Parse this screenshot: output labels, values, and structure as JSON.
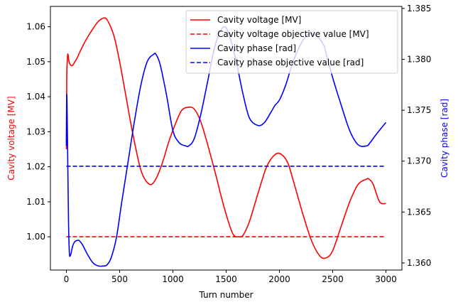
{
  "chart_data": {
    "type": "line",
    "xlabel": "Turn number",
    "ylabel_left": "Cavity voltage [MV]",
    "ylabel_right": "Cavity phase [rad]",
    "xlim": [
      -150,
      3150
    ],
    "ylim_left": [
      0.9905,
      1.0658
    ],
    "ylim_right": [
      1.3593,
      1.3852
    ],
    "xticks": [
      0,
      500,
      1000,
      1500,
      2000,
      2500,
      3000
    ],
    "yticks_left": [
      1.0,
      1.01,
      1.02,
      1.03,
      1.04,
      1.05,
      1.06
    ],
    "yticks_right": [
      1.36,
      1.365,
      1.37,
      1.375,
      1.38,
      1.385
    ],
    "grid": false,
    "legend_position": "top-right",
    "colors": {
      "voltage": "#ff0000",
      "phase": "#0000ff"
    },
    "series": [
      {
        "name": "Cavity voltage [MV]",
        "axis": "left",
        "style": "solid",
        "color": "#ff0000",
        "x": [
          0,
          3,
          8,
          12,
          16,
          25,
          40,
          60,
          80,
          100,
          130,
          180,
          240,
          300,
          360,
          400,
          450,
          500,
          560,
          620,
          700,
          780,
          840,
          900,
          960,
          1020,
          1080,
          1140,
          1200,
          1260,
          1320,
          1400,
          1480,
          1560,
          1620,
          1660,
          1720,
          1800,
          1880,
          1960,
          2020,
          2080,
          2140,
          2220,
          2300,
          2380,
          2440,
          2500,
          2580,
          2660,
          2740,
          2820,
          2840,
          2880,
          2940,
          3000
        ],
        "y": [
          1.025,
          1.045,
          1.05,
          1.052,
          1.052,
          1.05,
          1.049,
          1.049,
          1.05,
          1.051,
          1.053,
          1.056,
          1.059,
          1.0615,
          1.0625,
          1.061,
          1.057,
          1.05,
          1.04,
          1.03,
          1.019,
          1.015,
          1.0165,
          1.021,
          1.027,
          1.032,
          1.036,
          1.037,
          1.0365,
          1.033,
          1.027,
          1.018,
          1.0085,
          1.001,
          1.0,
          1.0005,
          1.0045,
          1.0125,
          1.02,
          1.0235,
          1.0235,
          1.021,
          1.015,
          1.0065,
          0.999,
          0.9945,
          0.994,
          0.996,
          1.003,
          1.01,
          1.015,
          1.0165,
          1.0165,
          1.015,
          1.01,
          1.0095
        ]
      },
      {
        "name": "Cavity voltage objective value [MV]",
        "axis": "left",
        "style": "dashed",
        "color": "#ff0000",
        "x": [
          0,
          3000
        ],
        "y": [
          1.0,
          1.0
        ]
      },
      {
        "name": "Cavity phase [rad]",
        "axis": "right",
        "style": "solid",
        "color": "#0000ff",
        "x": [
          0,
          3,
          8,
          14,
          20,
          28,
          36,
          45,
          60,
          80,
          100,
          120,
          150,
          200,
          250,
          300,
          350,
          380,
          420,
          470,
          520,
          580,
          640,
          700,
          760,
          820,
          840,
          880,
          940,
          1000,
          1060,
          1120,
          1150,
          1200,
          1260,
          1320,
          1400,
          1480,
          1540,
          1600,
          1660,
          1720,
          1800,
          1860,
          1920,
          1960,
          2000,
          2060,
          2120,
          2200,
          2280,
          2360,
          2420,
          2440,
          2500,
          2580,
          2660,
          2740,
          2820,
          2850,
          2900,
          2960,
          3000
        ],
        "y": [
          1.3715,
          1.3765,
          1.374,
          1.369,
          1.364,
          1.361,
          1.3607,
          1.361,
          1.3617,
          1.3621,
          1.3622,
          1.3622,
          1.3618,
          1.3608,
          1.36,
          1.3597,
          1.3597,
          1.3598,
          1.3605,
          1.3625,
          1.366,
          1.37,
          1.374,
          1.3775,
          1.3798,
          1.3805,
          1.3805,
          1.3795,
          1.3765,
          1.373,
          1.3718,
          1.3715,
          1.3715,
          1.3722,
          1.3745,
          1.3775,
          1.3815,
          1.3832,
          1.382,
          1.3795,
          1.3765,
          1.3742,
          1.3735,
          1.3738,
          1.3748,
          1.3755,
          1.376,
          1.3775,
          1.3795,
          1.3815,
          1.3825,
          1.3822,
          1.3813,
          1.3805,
          1.3782,
          1.3755,
          1.373,
          1.3716,
          1.3715,
          1.3718,
          1.3725,
          1.3733,
          1.3738
        ]
      },
      {
        "name": "Cavity phase objective value [rad]",
        "axis": "right",
        "style": "dashed",
        "color": "#0000ff",
        "x": [
          0,
          3000
        ],
        "y": [
          1.3695,
          1.3695
        ]
      }
    ]
  }
}
